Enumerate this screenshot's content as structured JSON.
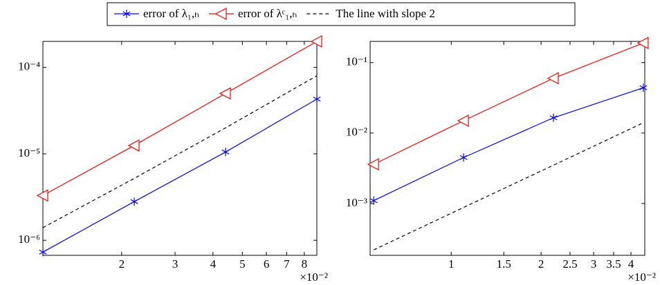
{
  "chart_data": [
    {
      "type": "line",
      "log_x": true,
      "log_y": true,
      "x": [
        1.1,
        2.2,
        4.4,
        8.8
      ],
      "xlim": [
        1.1,
        8.8
      ],
      "xticks": [
        2,
        3,
        4,
        5,
        6,
        7,
        8
      ],
      "x_multiplier": "×10⁻²",
      "ylim": [
        6.7e-07,
        0.0002
      ],
      "yticks": [
        {
          "value": 1e-06,
          "label": "10⁻⁶"
        },
        {
          "value": 1e-05,
          "label": "10⁻⁵"
        },
        {
          "value": 0.0001,
          "label": "10⁻⁴"
        }
      ],
      "series": [
        {
          "name": "error of λ₁,ₕ",
          "color": "#0000ff",
          "marker": "asterisk",
          "style": "solid",
          "values": [
            7.3e-07,
            2.8e-06,
            1.05e-05,
            4.3e-05
          ]
        },
        {
          "name": "error of λᶜ₁,ₕ",
          "color": "#ff0000",
          "marker": "triangle-left",
          "style": "solid",
          "values": [
            3.3e-06,
            1.25e-05,
            5e-05,
            0.0002
          ]
        },
        {
          "name": "The line with slope 2",
          "color": "#000000",
          "marker": "none",
          "style": "dashed",
          "values": [
            1.4e-06,
            5.2e-06,
            2e-05,
            8e-05
          ]
        }
      ]
    },
    {
      "type": "line",
      "log_x": true,
      "log_y": true,
      "x": [
        0.55,
        1.1,
        2.2,
        4.4
      ],
      "xlim": [
        0.535,
        4.45
      ],
      "xticks": [
        1,
        1.5,
        2,
        2.5,
        3,
        3.5,
        4
      ],
      "x_multiplier": "×10⁻²",
      "ylim": [
        0.000184,
        0.2
      ],
      "yticks": [
        {
          "value": 0.001,
          "label": "10⁻³"
        },
        {
          "value": 0.01,
          "label": "10⁻²"
        },
        {
          "value": 0.1,
          "label": "10⁻¹"
        }
      ],
      "series": [
        {
          "color": "#0000ff",
          "marker": "asterisk",
          "style": "solid",
          "values": [
            0.0011,
            0.0045,
            0.0165,
            0.044
          ]
        },
        {
          "color": "#ff0000",
          "marker": "triangle-left",
          "style": "solid",
          "values": [
            0.0036,
            0.015,
            0.06,
            0.19
          ]
        },
        {
          "color": "#000000",
          "marker": "none",
          "style": "dashed",
          "values": [
            0.00022,
            0.00088,
            0.0035,
            0.014
          ]
        }
      ]
    }
  ]
}
